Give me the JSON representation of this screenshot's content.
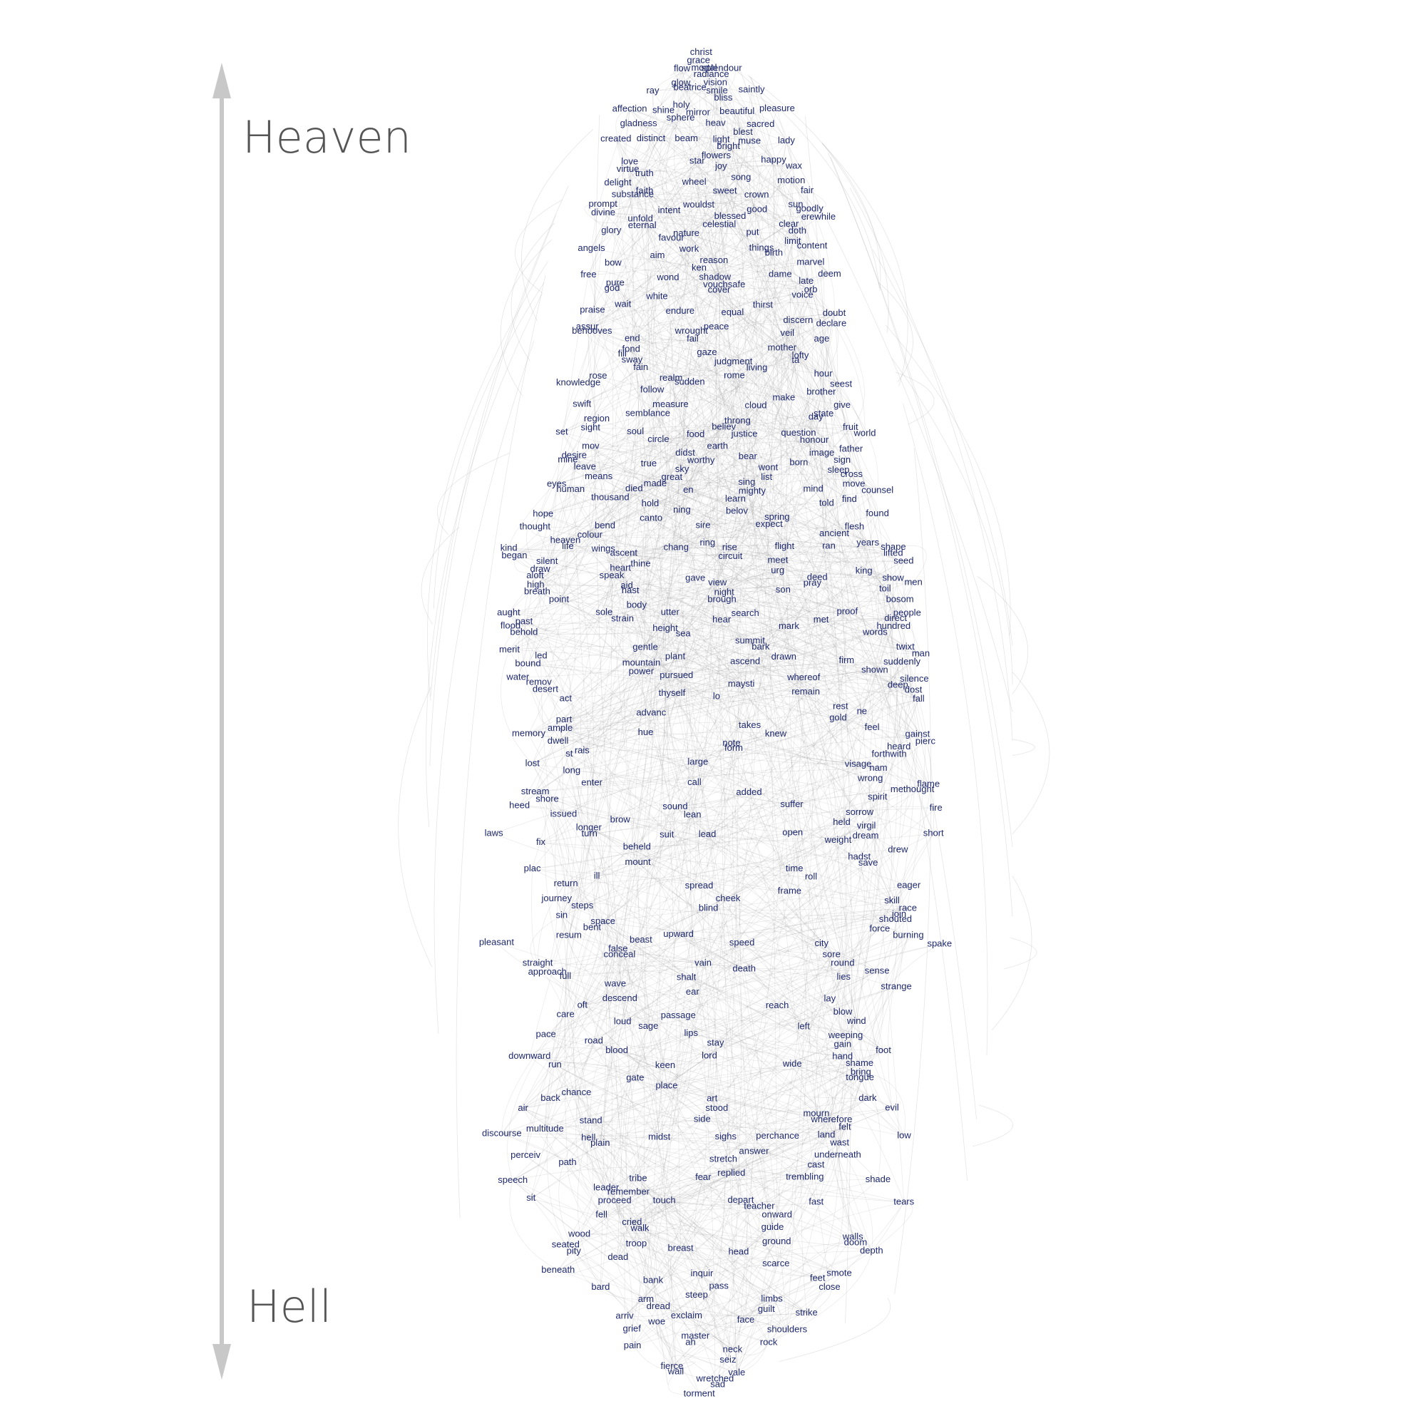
{
  "colors": {
    "word": "#1f2a6e",
    "edge": "#9a9a9a",
    "axis": "#c8c8c8",
    "axis_text": "#555555"
  },
  "axis": {
    "top_label": "Heaven",
    "bottom_label": "Hell"
  },
  "rows": [
    [
      "christ"
    ],
    [
      "grace"
    ],
    [
      "flow",
      "mortal",
      "splendour"
    ],
    [
      "radiance"
    ],
    [
      "glow",
      "vision"
    ],
    [
      "ray",
      "beatrice",
      "smile",
      "saintly"
    ],
    [
      "bliss"
    ],
    [
      "holy"
    ],
    [
      "affection",
      "shine",
      "mirror",
      "beautiful",
      "pleasure"
    ],
    [
      "sphere"
    ],
    [
      "gladness",
      "heav",
      "sacred"
    ],
    [
      "blest"
    ],
    [
      "created",
      "distinct",
      "beam",
      "light",
      "muse",
      "lady"
    ],
    [
      "bright"
    ],
    [
      "flowers"
    ],
    [
      "love",
      "star",
      "happy"
    ],
    [
      "virtue",
      "joy",
      "wax"
    ],
    [
      "truth",
      "song"
    ],
    [
      "delight",
      "wheel",
      "motion"
    ],
    [
      "faith",
      "sweet",
      "fair"
    ],
    [
      "substance",
      "crown"
    ],
    [
      "prompt",
      "wouldst",
      "sun"
    ],
    [
      "divine",
      "intent",
      "good",
      "goodly"
    ],
    [
      "unfold",
      "blessed",
      "erewhile"
    ],
    [
      "eternal",
      "celestial",
      "clear"
    ],
    [
      "glory",
      "nature",
      "put",
      "doth"
    ],
    [
      "favour",
      "limit"
    ],
    [
      "angels",
      "work",
      "things",
      "content"
    ],
    [
      "aim",
      "birth"
    ],
    [
      "bow",
      "reason",
      "marvel"
    ],
    [
      "ken"
    ],
    [
      "free",
      "wond",
      "shadow",
      "dame",
      "deem"
    ],
    [
      "pure",
      "vouchsafe",
      "late"
    ],
    [
      "god",
      "cover",
      "orb"
    ],
    [
      "white",
      "voice"
    ],
    [
      "wait",
      "thirst"
    ],
    [
      "praise",
      "endure",
      "equal",
      "doubt"
    ],
    [
      "discern"
    ],
    [
      "assur",
      "peace",
      "declare"
    ],
    [
      "behooves",
      "wrought",
      "veil"
    ],
    [
      "end",
      "fail",
      "age"
    ],
    [
      "fond",
      "mother"
    ],
    [
      "fill",
      "gaze",
      "lofty"
    ],
    [
      "sway",
      "judgment",
      "ta"
    ],
    [
      "fain",
      "living"
    ],
    [
      "rose",
      "realm",
      "rome",
      "hour"
    ],
    [
      "knowledge",
      "sudden",
      "seest"
    ],
    [
      "follow",
      "brother"
    ],
    [
      "make"
    ],
    [
      "swift",
      "measure",
      "cloud",
      "give"
    ],
    [
      "semblance",
      "state"
    ],
    [
      "region",
      "throng",
      "day"
    ],
    [
      "sight",
      "believ",
      "fruit"
    ],
    [
      "set",
      "soul",
      "food",
      "justice",
      "question",
      "world"
    ],
    [
      "circle",
      "honour"
    ],
    [
      "mov",
      "earth",
      "father"
    ],
    [
      "desire",
      "didst",
      "bear",
      "image"
    ],
    [
      "mine",
      "true",
      "worthy",
      "born",
      "sign"
    ],
    [
      "leave",
      "sky",
      "wont",
      "sleep"
    ],
    [
      "means",
      "great",
      "list",
      "cross"
    ],
    [
      "eyes",
      "made",
      "sing",
      "move"
    ],
    [
      "human",
      "died",
      "en",
      "mighty",
      "mind",
      "counsel"
    ],
    [
      "thousand",
      "learn",
      "find"
    ],
    [
      "hold",
      "told"
    ],
    [
      "hope",
      "ning",
      "belov",
      "found"
    ],
    [
      "canto",
      "spring"
    ],
    [
      "thought",
      "bend",
      "sire",
      "expect",
      "flesh"
    ],
    [
      "colour",
      "ancient"
    ],
    [
      "heaven",
      "ring",
      "years"
    ],
    [
      "kind",
      "life",
      "wings",
      "chang",
      "rise",
      "flight",
      "ran",
      "shape"
    ],
    [
      "began",
      "ascent",
      "circuit",
      "lifted"
    ],
    [
      "silent",
      "thine",
      "meet",
      "seed"
    ],
    [
      "draw",
      "heart",
      "urg",
      "king"
    ],
    [
      "aloft",
      "speak",
      "gave",
      "deed",
      "show"
    ],
    [
      "high",
      "aid",
      "view",
      "pray",
      "men"
    ],
    [
      "breath",
      "hast",
      "night",
      "son",
      "toil"
    ],
    [
      "point",
      "brough",
      "bosom"
    ],
    [
      "body"
    ],
    [
      "aught",
      "sole",
      "utter",
      "search",
      "proof",
      "people"
    ],
    [
      "past",
      "strain",
      "hear",
      "met",
      "direct"
    ],
    [
      "flood",
      "height",
      "mark",
      "hundred"
    ],
    [
      "behold",
      "sea",
      "words"
    ],
    [
      "summit"
    ],
    [
      "merit",
      "gentle",
      "bark",
      "twixt"
    ],
    [
      "led",
      "plant",
      "drawn",
      "man"
    ],
    [
      "bound",
      "mountain",
      "ascend",
      "firm",
      "suddenly"
    ],
    [
      "power",
      "shown"
    ],
    [
      "water",
      "pursued",
      "whereof",
      "silence"
    ],
    [
      "remov",
      "maysti",
      "deep"
    ],
    [
      "desert",
      "thyself",
      "remain",
      "dost"
    ],
    [
      "act",
      "lo",
      "fall"
    ],
    [
      "rest"
    ],
    [
      "advanc",
      "ne"
    ],
    [
      "part",
      "gold"
    ],
    [
      "ample",
      "takes",
      "feel"
    ],
    [
      "memory",
      "hue",
      "knew",
      "gainst"
    ],
    [
      "dwell",
      "note",
      "pierc"
    ],
    [
      "rais",
      "form",
      "heard"
    ],
    [
      "st",
      "forthwith"
    ],
    [
      "lost",
      "large",
      "visage"
    ],
    [
      "long",
      "nam"
    ],
    [
      "wrong"
    ],
    [
      "enter",
      "call",
      "flame"
    ],
    [
      "stream",
      "added",
      "methought"
    ],
    [
      "shore",
      "spirit"
    ],
    [
      "heed",
      "sound",
      "suffer",
      "fire"
    ],
    [
      "issued",
      "lean",
      "sorrow"
    ],
    [
      "brow",
      "held"
    ],
    [
      "longer",
      "virgil"
    ],
    [
      "laws",
      "turn",
      "suit",
      "lead",
      "open",
      "dream",
      "short"
    ],
    [
      "fix",
      "weight"
    ],
    [
      "beheld",
      "drew"
    ],
    [
      "hadst"
    ],
    [
      "mount",
      "save"
    ],
    [
      "plac",
      "time"
    ],
    [
      "ill",
      "roll"
    ],
    [
      "return",
      "spread",
      "eager"
    ],
    [
      "frame"
    ],
    [
      "journey",
      "cheek",
      "skill"
    ],
    [
      "steps",
      "blind",
      "race"
    ],
    [
      "sin",
      "join"
    ],
    [
      "space",
      "shouted"
    ],
    [
      "bent",
      "force"
    ],
    [
      "resum",
      "upward",
      "burning"
    ],
    [
      "pleasant",
      "beast",
      "speed",
      "city",
      "spake"
    ],
    [
      "false"
    ],
    [
      "conceal",
      "sore"
    ],
    [
      "straight",
      "vain",
      "round"
    ],
    [
      "approach",
      "death",
      "sense"
    ],
    [
      "full",
      "shalt",
      "lies"
    ],
    [
      "wave",
      "strange"
    ],
    [
      "ear"
    ],
    [
      "descend",
      "lay"
    ],
    [
      "oft",
      "reach"
    ],
    [
      "care",
      "passage",
      "blow"
    ],
    [
      "loud",
      "wind"
    ],
    [
      "sage",
      "left"
    ],
    [
      "pace",
      "lips",
      "weeping"
    ],
    [
      "road",
      "stay",
      "gain"
    ],
    [
      "blood",
      "foot"
    ],
    [
      "downward",
      "lord",
      "hand"
    ],
    [
      "run",
      "keen",
      "wide",
      "shame"
    ],
    [
      "bring"
    ],
    [
      "gate",
      "tongue"
    ],
    [
      "place"
    ],
    [
      "chance"
    ],
    [
      "back",
      "art",
      "dark"
    ],
    [
      "air",
      "stood",
      "evil"
    ],
    [
      "mourn"
    ],
    [
      "stand",
      "side",
      "wherefore"
    ],
    [
      "multitude",
      "felt"
    ],
    [
      "discourse",
      "hell",
      "midst",
      "sighs",
      "perchance",
      "land",
      "low"
    ],
    [
      "plain",
      "wast"
    ],
    [
      "answer"
    ],
    [
      "perceiv",
      "stretch",
      "underneath"
    ],
    [
      "path",
      "cast"
    ],
    [
      "replied"
    ],
    [
      "speech",
      "tribe",
      "fear",
      "trembling",
      "shade"
    ],
    [
      "leader"
    ],
    [
      "remember"
    ],
    [
      "sit",
      "proceed",
      "touch",
      "depart",
      "fast",
      "tears"
    ],
    [
      "teacher"
    ],
    [
      "fell",
      "onward"
    ],
    [
      "cried"
    ],
    [
      "walk",
      "guide"
    ],
    [
      "wood",
      "walls"
    ],
    [
      "seated",
      "troop",
      "ground",
      "doom"
    ],
    [
      "pity",
      "breast",
      "head",
      "depth"
    ],
    [
      "dead"
    ],
    [
      "scarce"
    ],
    [
      "beneath",
      "inquir",
      "smote"
    ],
    [
      "bank",
      "feet"
    ],
    [
      "bard",
      "pass",
      "close"
    ],
    [
      "steep"
    ],
    [
      "arm",
      "limbs"
    ],
    [
      "dread",
      "guilt"
    ],
    [
      "arriv",
      "exclaim",
      "strike"
    ],
    [
      "woe",
      "face"
    ],
    [
      "grief",
      "shoulders"
    ],
    [
      "master"
    ],
    [
      "pain",
      "ah",
      "rock"
    ],
    [
      "neck"
    ],
    [
      "seiz"
    ],
    [
      "fierce"
    ],
    [
      "wail",
      "vale"
    ],
    [
      "wretched"
    ],
    [
      "sad"
    ],
    [
      "torment"
    ]
  ]
}
